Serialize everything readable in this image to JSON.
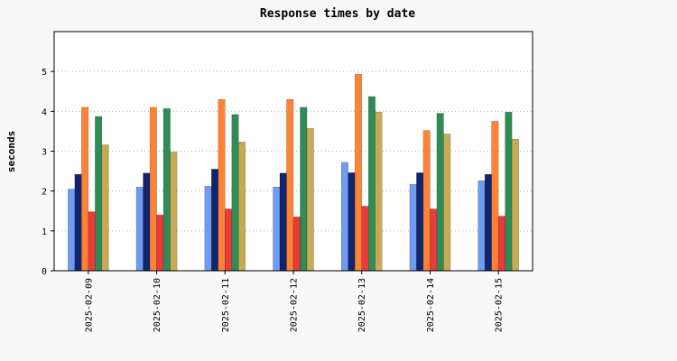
{
  "chart_data": {
    "type": "bar",
    "title": "Response times by date",
    "xlabel": "",
    "ylabel": "seconds",
    "ylim": [
      0,
      6
    ],
    "yticks": [
      0,
      1,
      2,
      3,
      4,
      5
    ],
    "grid": "horizontal-dotted",
    "legend": "none",
    "categories": [
      "2025-02-09",
      "2025-02-10",
      "2025-02-11",
      "2025-02-12",
      "2025-02-13",
      "2025-02-14",
      "2025-02-15"
    ],
    "series": [
      {
        "color": "#6f9cf2",
        "values": [
          2.05,
          2.1,
          2.12,
          2.1,
          2.72,
          2.17,
          2.26
        ]
      },
      {
        "color": "#10256e",
        "values": [
          2.42,
          2.45,
          2.55,
          2.45,
          2.46,
          2.46,
          2.42
        ]
      },
      {
        "color": "#ff8236",
        "values": [
          4.1,
          4.1,
          4.3,
          4.3,
          4.93,
          3.52,
          3.75
        ]
      },
      {
        "color": "#ea3a3a",
        "values": [
          1.48,
          1.4,
          1.55,
          1.35,
          1.62,
          1.55,
          1.37
        ]
      },
      {
        "color": "#2f8c55",
        "values": [
          3.87,
          4.07,
          3.92,
          4.1,
          4.37,
          3.95,
          3.98
        ]
      },
      {
        "color": "#c8aa54",
        "values": [
          3.16,
          2.98,
          3.23,
          3.57,
          3.98,
          3.43,
          3.3
        ]
      }
    ],
    "colors": {
      "background": "#f8f8f8",
      "plot_background": "#ffffff",
      "axis": "#000000",
      "grid": "#b0b0b0"
    }
  }
}
